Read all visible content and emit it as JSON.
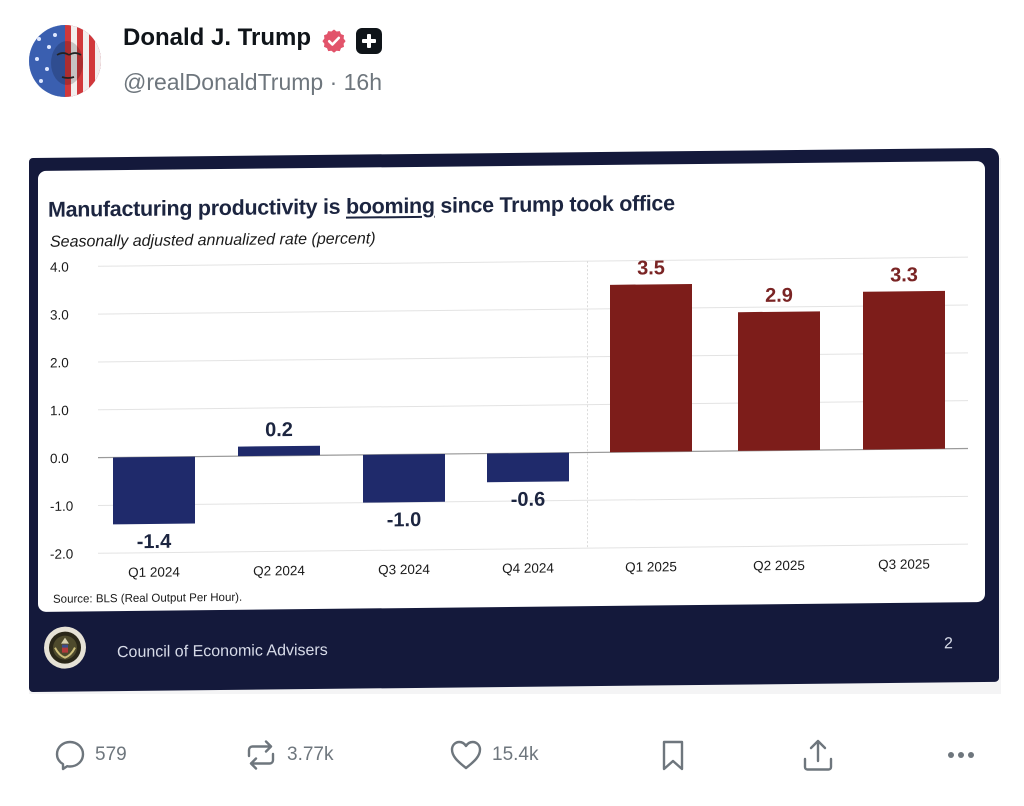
{
  "post": {
    "author_name": "Donald J. Trump",
    "verified_badge": "verified-icon",
    "affiliate_badge": "plus-icon",
    "handle": "@realDonaldTrump",
    "separator": "·",
    "time": "16h",
    "handle_line": "@realDonaldTrump · 16h"
  },
  "slide": {
    "title_before": "Manufacturing productivity is ",
    "title_underlined": "booming",
    "title_after": " since Trump took office",
    "source": "Source: BLS (Real Output Per Hour).",
    "footer_org": "Council of Economic Advisers",
    "page_number": "2",
    "seal_icon": "seal-icon"
  },
  "chart_data": {
    "type": "bar",
    "title": "Manufacturing productivity is booming since Trump took office",
    "subtitle": "Seasonally adjusted annualized rate (percent)",
    "xlabel": "",
    "ylabel": "Seasonally adjusted annualized rate (percent)",
    "categories": [
      "Q1 2024",
      "Q2 2024",
      "Q3 2024",
      "Q4 2024",
      "Q1 2025",
      "Q2 2025",
      "Q3 2025"
    ],
    "values": [
      -1.4,
      0.2,
      -1.0,
      -0.6,
      3.5,
      2.9,
      3.3
    ],
    "data_labels": [
      "-1.4",
      "0.2",
      "-1.0",
      "-0.6",
      "3.5",
      "2.9",
      "3.3"
    ],
    "ylim": [
      -2.0,
      4.0
    ],
    "yticks": [
      4.0,
      3.0,
      2.0,
      1.0,
      0.0,
      -1.0,
      -2.0
    ],
    "ytick_labels": [
      "4.0",
      "3.0",
      "2.0",
      "1.0",
      "0.0",
      "-1.0",
      "-2.0"
    ],
    "grid": true,
    "legend": "none",
    "colors": {
      "before": "#1f2a6b",
      "after": "#7d1d1a"
    },
    "series_split_after": "Q4 2024",
    "source": "BLS (Real Output Per Hour)"
  },
  "actions": {
    "reply": {
      "icon": "reply-icon",
      "count": "579"
    },
    "repost": {
      "icon": "repost-icon",
      "count": "3.77k"
    },
    "like": {
      "icon": "heart-icon",
      "count": "15.4k"
    },
    "bookmark": {
      "icon": "bookmark-icon"
    },
    "share": {
      "icon": "share-icon"
    },
    "more": {
      "icon": "more-icon"
    }
  }
}
